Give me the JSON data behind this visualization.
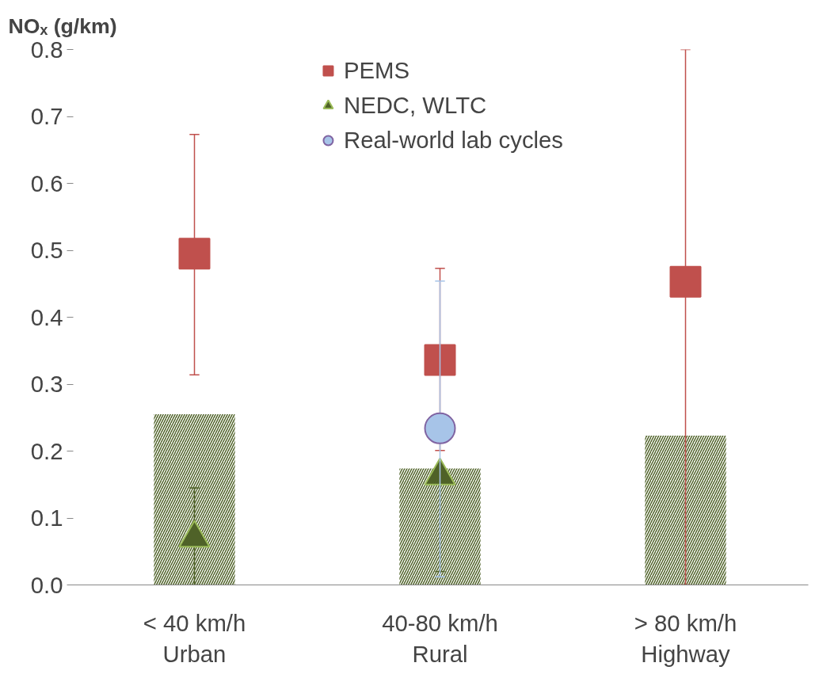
{
  "chart_data": {
    "type": "bar",
    "ylabel": "NOₓ (g/km)",
    "categories": [
      "< 40 km/h\nUrban",
      "40-80 km/h\nRural",
      "> 80 km/h\nHighway"
    ],
    "ylim": [
      0,
      0.8
    ],
    "yticks": [
      "0.0",
      0.1,
      0.2,
      0.3,
      0.4,
      0.5,
      0.6,
      0.7,
      0.8
    ],
    "grid": false,
    "legend": "top",
    "series": [
      {
        "color": "#4f6228",
        "values": [
          0.255,
          0.174,
          0.223
        ]
      },
      {
        "type": "scatter",
        "name": "PEMS",
        "color": "#c0504d",
        "marker": "square",
        "values": [
          0.495,
          0.336,
          0.453
        ],
        "errors": [
          [
            0.314,
            0.673
          ],
          [
            0.201,
            0.473
          ],
          [
            0,
            0.8
          ]
        ]
      },
      {
        "type": "scatter",
        "name": "NEDC, WLTC",
        "color": "#4f6228",
        "marker": "triangle",
        "values": [
          0.07,
          0.163,
          null
        ],
        "errors": [
          [
            0,
            0.145
          ],
          [
            0.02,
            0.163
          ],
          null
        ]
      },
      {
        "type": "scatter",
        "name": "Real-world lab cycles",
        "color": "#a7c4e8",
        "marker": "circle",
        "values": [
          null,
          0.234,
          null
        ],
        "errors": [
          null,
          [
            0.012,
            0.454
          ],
          null
        ]
      }
    ]
  }
}
